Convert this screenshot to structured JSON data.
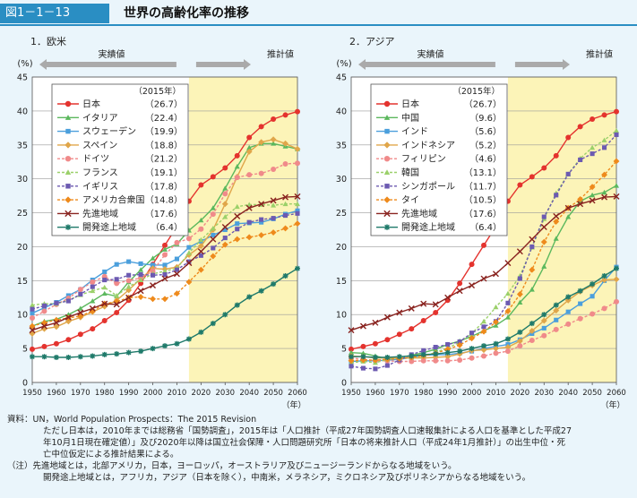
{
  "header": {
    "figure_label": "図1－1－13",
    "title": "世界の高齢化率の推移"
  },
  "chart_data": [
    {
      "type": "line",
      "title": "1．欧米",
      "ylabel": "(%)",
      "xlabel": "（年）",
      "ylim": [
        0,
        45
      ],
      "xlim": [
        1950,
        2060
      ],
      "x_ticks": [
        1950,
        1960,
        1970,
        1980,
        1990,
        2000,
        2010,
        2020,
        2030,
        2040,
        2050,
        2060
      ],
      "y_ticks": [
        0,
        5,
        10,
        15,
        20,
        25,
        30,
        35,
        40,
        45
      ],
      "actual_label": "実績値",
      "projection_label": "推計値",
      "projection_start": 2015,
      "legend_title": "（2015年）",
      "legend_position": "top-left",
      "x": [
        1950,
        1955,
        1960,
        1965,
        1970,
        1975,
        1980,
        1985,
        1990,
        1995,
        2000,
        2005,
        2010,
        2015,
        2020,
        2025,
        2030,
        2035,
        2040,
        2045,
        2050,
        2055,
        2060
      ],
      "series": [
        {
          "name": "日本",
          "value_label": "（26.7）",
          "color": "#e4332e",
          "marker": "circle",
          "dashed": false,
          "values": [
            4.9,
            5.3,
            5.7,
            6.3,
            7.1,
            7.9,
            9.1,
            10.3,
            12.1,
            14.6,
            17.4,
            20.2,
            23.0,
            26.7,
            29.1,
            30.3,
            31.6,
            33.4,
            36.1,
            37.7,
            38.8,
            39.4,
            39.9
          ]
        },
        {
          "name": "イタリア",
          "value_label": "（22.4）",
          "color": "#5bb85d",
          "marker": "triangle",
          "dashed": false,
          "values": [
            8.3,
            9.0,
            9.3,
            10.0,
            10.9,
            12.0,
            13.1,
            12.7,
            14.8,
            16.6,
            18.3,
            19.6,
            20.4,
            22.4,
            23.9,
            25.7,
            28.6,
            31.8,
            34.6,
            35.2,
            35.2,
            34.8,
            34.4
          ]
        },
        {
          "name": "スウェーデン",
          "value_label": "（19.9）",
          "color": "#4b9fdc",
          "marker": "square",
          "dashed": false,
          "values": [
            10.2,
            11.0,
            11.8,
            12.8,
            13.7,
            15.1,
            16.3,
            17.4,
            17.8,
            17.5,
            17.3,
            17.3,
            18.2,
            19.9,
            20.8,
            21.7,
            22.5,
            23.4,
            23.5,
            23.6,
            24.1,
            24.8,
            25.3
          ]
        },
        {
          "name": "スペイン",
          "value_label": "（18.8）",
          "color": "#e0a64a",
          "marker": "diamond",
          "dashed": false,
          "values": [
            7.2,
            7.9,
            8.2,
            9.0,
            9.6,
            10.4,
            11.2,
            12.1,
            13.6,
            15.3,
            16.8,
            16.7,
            17.0,
            18.8,
            20.1,
            22.5,
            26.3,
            30.3,
            34.0,
            35.4,
            35.8,
            35.2,
            34.4
          ]
        },
        {
          "name": "ドイツ",
          "value_label": "（21.2）",
          "color": "#f08a8a",
          "marker": "circle",
          "dashed": true,
          "values": [
            9.5,
            10.5,
            11.5,
            12.4,
            13.7,
            14.8,
            15.6,
            14.6,
            15.0,
            15.4,
            16.4,
            18.8,
            20.6,
            21.2,
            22.6,
            24.8,
            27.8,
            30.2,
            30.6,
            30.8,
            31.4,
            32.2,
            32.3
          ]
        },
        {
          "name": "フランス",
          "value_label": "（19.1）",
          "color": "#9bd06a",
          "marker": "triangle",
          "dashed": true,
          "values": [
            11.4,
            11.6,
            11.6,
            12.1,
            12.9,
            13.5,
            14.0,
            12.8,
            14.1,
            15.1,
            16.0,
            16.4,
            16.8,
            19.1,
            21.0,
            22.7,
            24.4,
            25.9,
            26.2,
            26.2,
            26.1,
            26.3,
            26.3
          ]
        },
        {
          "name": "イギリス",
          "value_label": "（17.8）",
          "color": "#6c5ab1",
          "marker": "square",
          "dashed": true,
          "values": [
            10.8,
            11.3,
            11.7,
            12.0,
            13.0,
            14.1,
            15.1,
            15.2,
            15.8,
            15.9,
            15.8,
            15.9,
            16.6,
            17.8,
            18.7,
            19.8,
            21.3,
            22.6,
            23.6,
            24.0,
            24.2,
            24.6,
            24.9
          ]
        },
        {
          "name": "アメリカ合衆国",
          "value_label": "（14.8）",
          "color": "#ee8a1c",
          "marker": "diamond",
          "dashed": true,
          "values": [
            8.3,
            8.8,
            9.2,
            9.5,
            9.8,
            10.5,
            11.6,
            11.9,
            12.5,
            12.6,
            12.3,
            12.3,
            13.1,
            14.8,
            16.6,
            18.6,
            20.3,
            21.1,
            21.4,
            21.7,
            22.1,
            22.7,
            23.4
          ]
        },
        {
          "name": "先進地域",
          "value_label": "（17.6）",
          "color": "#8a2420",
          "marker": "x",
          "dashed": false,
          "values": [
            7.7,
            8.3,
            8.8,
            9.6,
            10.3,
            10.9,
            11.6,
            11.5,
            12.5,
            13.5,
            14.3,
            15.3,
            16.0,
            17.6,
            19.3,
            21.1,
            22.9,
            24.5,
            25.7,
            26.3,
            26.8,
            27.3,
            27.4
          ]
        },
        {
          "name": "開発途上地域",
          "value_label": "（6.4）",
          "color": "#1f7a6a",
          "marker": "star",
          "dashed": false,
          "values": [
            3.8,
            3.8,
            3.7,
            3.7,
            3.8,
            3.9,
            4.1,
            4.2,
            4.4,
            4.6,
            5.0,
            5.4,
            5.7,
            6.4,
            7.4,
            8.7,
            10.0,
            11.4,
            12.6,
            13.5,
            14.5,
            15.7,
            16.8
          ]
        }
      ]
    },
    {
      "type": "line",
      "title": "2．アジア",
      "ylabel": "(%)",
      "xlabel": "（年）",
      "ylim": [
        0,
        45
      ],
      "xlim": [
        1950,
        2060
      ],
      "x_ticks": [
        1950,
        1960,
        1970,
        1980,
        1990,
        2000,
        2010,
        2020,
        2030,
        2040,
        2050,
        2060
      ],
      "y_ticks": [
        0,
        5,
        10,
        15,
        20,
        25,
        30,
        35,
        40,
        45
      ],
      "actual_label": "実績値",
      "projection_label": "推計値",
      "projection_start": 2015,
      "legend_title": "（2015年）",
      "legend_position": "top-left",
      "x": [
        1950,
        1955,
        1960,
        1965,
        1970,
        1975,
        1980,
        1985,
        1990,
        1995,
        2000,
        2005,
        2010,
        2015,
        2020,
        2025,
        2030,
        2035,
        2040,
        2045,
        2050,
        2055,
        2060
      ],
      "series": [
        {
          "name": "日本",
          "value_label": "（26.7）",
          "color": "#e4332e",
          "marker": "circle",
          "dashed": false,
          "values": [
            4.9,
            5.3,
            5.7,
            6.3,
            7.1,
            7.9,
            9.1,
            10.3,
            12.1,
            14.6,
            17.4,
            20.2,
            23.0,
            26.7,
            29.1,
            30.3,
            31.6,
            33.4,
            36.1,
            37.7,
            38.8,
            39.4,
            39.9
          ]
        },
        {
          "name": "中国",
          "value_label": "（9.6）",
          "color": "#5bb85d",
          "marker": "triangle",
          "dashed": false,
          "values": [
            4.4,
            4.3,
            3.9,
            3.5,
            3.7,
            4.0,
            4.4,
            4.9,
            5.6,
            6.1,
            6.8,
            7.6,
            8.4,
            9.6,
            11.8,
            13.7,
            17.1,
            21.2,
            24.4,
            26.7,
            27.6,
            28.0,
            29.0
          ]
        },
        {
          "name": "インド",
          "value_label": "（5.6）",
          "color": "#4b9fdc",
          "marker": "square",
          "dashed": false,
          "values": [
            3.1,
            3.2,
            3.2,
            3.3,
            3.4,
            3.7,
            4.0,
            4.1,
            4.1,
            4.3,
            4.6,
            5.0,
            5.3,
            5.6,
            6.3,
            7.2,
            8.0,
            9.2,
            10.4,
            11.6,
            12.7,
            15.0,
            17.0
          ]
        },
        {
          "name": "インドネシア",
          "value_label": "（5.2）",
          "color": "#e0a64a",
          "marker": "diamond",
          "dashed": false,
          "values": [
            3.9,
            3.8,
            3.6,
            3.6,
            3.6,
            3.6,
            3.6,
            3.7,
            3.8,
            4.2,
            4.7,
            4.8,
            5.0,
            5.2,
            6.1,
            7.6,
            9.1,
            10.6,
            12.1,
            13.4,
            14.3,
            15.1,
            15.2
          ]
        },
        {
          "name": "フィリピン",
          "value_label": "（4.6）",
          "color": "#f08a8a",
          "marker": "circle",
          "dashed": true,
          "values": [
            3.6,
            3.4,
            3.2,
            3.2,
            3.1,
            3.1,
            3.2,
            3.2,
            3.2,
            3.3,
            3.6,
            3.9,
            4.3,
            4.6,
            5.4,
            6.2,
            6.9,
            7.8,
            8.6,
            9.4,
            10.1,
            10.9,
            11.9
          ]
        },
        {
          "name": "韓国",
          "value_label": "（13.1）",
          "color": "#9bd06a",
          "marker": "triangle",
          "dashed": true,
          "values": [
            2.9,
            3.1,
            2.9,
            3.4,
            3.5,
            3.7,
            3.9,
            4.4,
            5.1,
            5.9,
            7.2,
            9.0,
            11.1,
            13.1,
            15.7,
            19.9,
            24.1,
            27.9,
            30.7,
            33.0,
            34.6,
            35.7,
            37.1
          ]
        },
        {
          "name": "シンガポール",
          "value_label": "（11.7）",
          "color": "#6c5ab1",
          "marker": "square",
          "dashed": true,
          "values": [
            2.4,
            2.1,
            2.0,
            2.5,
            3.3,
            4.1,
            4.7,
            5.2,
            5.6,
            6.0,
            7.3,
            8.2,
            9.0,
            11.7,
            15.3,
            20.0,
            24.4,
            27.6,
            30.7,
            32.8,
            33.7,
            34.6,
            36.5
          ]
        },
        {
          "name": "タイ",
          "value_label": "（10.5）",
          "color": "#ee8a1c",
          "marker": "diamond",
          "dashed": true,
          "values": [
            3.2,
            3.3,
            3.3,
            3.4,
            3.5,
            3.7,
            3.9,
            4.3,
            4.9,
            5.5,
            6.5,
            7.5,
            8.9,
            10.5,
            13.0,
            16.6,
            20.7,
            23.7,
            25.7,
            27.0,
            28.8,
            30.6,
            32.6
          ]
        },
        {
          "name": "先進地域",
          "value_label": "（17.6）",
          "color": "#8a2420",
          "marker": "x",
          "dashed": false,
          "values": [
            7.7,
            8.3,
            8.8,
            9.6,
            10.3,
            10.9,
            11.6,
            11.5,
            12.5,
            13.5,
            14.3,
            15.3,
            16.0,
            17.6,
            19.3,
            21.1,
            22.9,
            24.5,
            25.7,
            26.3,
            26.8,
            27.3,
            27.4
          ]
        },
        {
          "name": "開発途上地域",
          "value_label": "（6.4）",
          "color": "#1f7a6a",
          "marker": "star",
          "dashed": false,
          "values": [
            3.8,
            3.8,
            3.7,
            3.7,
            3.8,
            3.9,
            4.1,
            4.2,
            4.4,
            4.6,
            5.0,
            5.4,
            5.7,
            6.4,
            7.4,
            8.7,
            10.0,
            11.4,
            12.6,
            13.5,
            14.5,
            15.7,
            16.8
          ]
        }
      ]
    }
  ],
  "notes": {
    "source_lines": [
      "資料：UN，World Population Prospects：The 2015 Revision",
      "ただし日本は，2010年までは総務省「国勢調査」，2015年は「人口推計（平成27年国勢調査人口速報集計による人口を基準とした平成27",
      "年10月1日現在確定値）」及び2020年以降は国立社会保障・人口問題研究所「日本の将来推計人口（平成24年1月推計）」の出生中位・死",
      "亡中位仮定による推計結果による。"
    ],
    "footnote_lines": [
      "（注）先進地域とは，北部アメリカ，日本，ヨーロッパ，オーストラリア及びニュージーランドからなる地域をいう。",
      "開発途上地域とは，アフリカ，アジア（日本を除く），中南米，メラネシア，ミクロネシア及びポリネシアからなる地域をいう。"
    ]
  }
}
